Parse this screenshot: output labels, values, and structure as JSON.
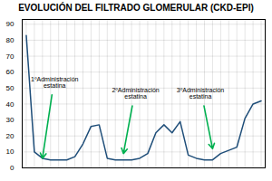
{
  "chart_data": {
    "type": "line",
    "title": "EVOLUCIÓN DEL FILTRADO GLOMERULAR (CKD-EPI)",
    "x": [
      0,
      1,
      2,
      3,
      4,
      5,
      6,
      7,
      8,
      9,
      10,
      11,
      12,
      13,
      14,
      15,
      16,
      17,
      18,
      19,
      20,
      21,
      22,
      23,
      24,
      25,
      26,
      27,
      28,
      29
    ],
    "values": [
      83,
      10,
      6,
      5,
      5,
      5,
      7,
      15,
      26,
      27,
      6,
      5,
      5,
      5,
      6,
      9,
      22,
      27,
      22,
      29,
      8,
      6,
      5,
      5,
      9,
      11,
      13,
      31,
      40,
      42
    ],
    "color": "#1f4e79",
    "xlim": [
      -0.5,
      29.5
    ],
    "ylim": [
      0,
      93
    ],
    "yticks": [
      0,
      10,
      20,
      30,
      40,
      50,
      60,
      70,
      80,
      90
    ],
    "grid": true,
    "tick_labels": "y",
    "annotations": [
      {
        "text": "1ºAdministración\nestatina",
        "x": 2.0,
        "y": 6,
        "text_x": 3.5,
        "text_y": 57,
        "color": "#00b050"
      },
      {
        "text": "2ºAdministración\nestatina",
        "x": 12.0,
        "y": 9,
        "text_x": 13.5,
        "text_y": 50,
        "color": "#00b050"
      },
      {
        "text": "3ºAdministración\nestatina",
        "x": 23.0,
        "y": 12,
        "text_x": 21.5,
        "text_y": 50,
        "color": "#00b050"
      }
    ]
  }
}
